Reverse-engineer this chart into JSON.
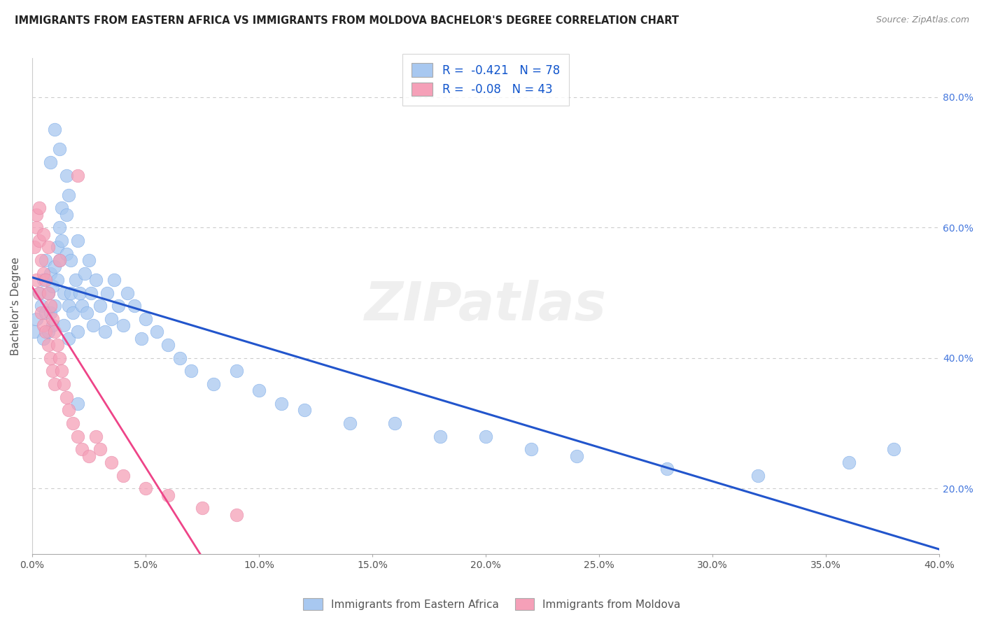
{
  "title": "IMMIGRANTS FROM EASTERN AFRICA VS IMMIGRANTS FROM MOLDOVA BACHELOR'S DEGREE CORRELATION CHART",
  "source": "Source: ZipAtlas.com",
  "ylabel": "Bachelor's Degree",
  "legend_label1": "Immigrants from Eastern Africa",
  "legend_label2": "Immigrants from Moldova",
  "R1": -0.421,
  "N1": 78,
  "R2": -0.08,
  "N2": 43,
  "xlim": [
    0.0,
    0.4
  ],
  "ylim": [
    0.1,
    0.86
  ],
  "color_blue": "#A8C8F0",
  "color_pink": "#F5A0B8",
  "line_color_blue": "#2255CC",
  "line_color_pink": "#EE4488",
  "background": "#FFFFFF",
  "blue_scatter_x": [
    0.001,
    0.002,
    0.003,
    0.004,
    0.005,
    0.005,
    0.006,
    0.006,
    0.007,
    0.007,
    0.008,
    0.008,
    0.009,
    0.009,
    0.01,
    0.01,
    0.011,
    0.011,
    0.012,
    0.012,
    0.013,
    0.013,
    0.014,
    0.014,
    0.015,
    0.015,
    0.016,
    0.016,
    0.017,
    0.017,
    0.018,
    0.019,
    0.02,
    0.02,
    0.021,
    0.022,
    0.023,
    0.024,
    0.025,
    0.026,
    0.027,
    0.028,
    0.03,
    0.032,
    0.033,
    0.035,
    0.036,
    0.038,
    0.04,
    0.042,
    0.045,
    0.048,
    0.05,
    0.055,
    0.06,
    0.065,
    0.07,
    0.08,
    0.09,
    0.1,
    0.11,
    0.12,
    0.14,
    0.16,
    0.18,
    0.2,
    0.22,
    0.24,
    0.28,
    0.32,
    0.36,
    0.38,
    0.008,
    0.01,
    0.015,
    0.02,
    0.012,
    0.016
  ],
  "blue_scatter_y": [
    0.44,
    0.46,
    0.5,
    0.48,
    0.52,
    0.43,
    0.55,
    0.47,
    0.5,
    0.44,
    0.53,
    0.47,
    0.51,
    0.45,
    0.54,
    0.48,
    0.57,
    0.52,
    0.6,
    0.55,
    0.63,
    0.58,
    0.5,
    0.45,
    0.62,
    0.56,
    0.48,
    0.43,
    0.55,
    0.5,
    0.47,
    0.52,
    0.58,
    0.44,
    0.5,
    0.48,
    0.53,
    0.47,
    0.55,
    0.5,
    0.45,
    0.52,
    0.48,
    0.44,
    0.5,
    0.46,
    0.52,
    0.48,
    0.45,
    0.5,
    0.48,
    0.43,
    0.46,
    0.44,
    0.42,
    0.4,
    0.38,
    0.36,
    0.38,
    0.35,
    0.33,
    0.32,
    0.3,
    0.3,
    0.28,
    0.28,
    0.26,
    0.25,
    0.23,
    0.22,
    0.24,
    0.26,
    0.7,
    0.75,
    0.68,
    0.33,
    0.72,
    0.65
  ],
  "pink_scatter_x": [
    0.001,
    0.002,
    0.002,
    0.003,
    0.003,
    0.004,
    0.004,
    0.005,
    0.005,
    0.006,
    0.006,
    0.007,
    0.007,
    0.008,
    0.008,
    0.009,
    0.009,
    0.01,
    0.01,
    0.011,
    0.012,
    0.013,
    0.014,
    0.015,
    0.016,
    0.018,
    0.02,
    0.022,
    0.025,
    0.028,
    0.03,
    0.035,
    0.04,
    0.05,
    0.06,
    0.075,
    0.09,
    0.002,
    0.003,
    0.005,
    0.007,
    0.012,
    0.02
  ],
  "pink_scatter_y": [
    0.57,
    0.6,
    0.52,
    0.58,
    0.5,
    0.55,
    0.47,
    0.53,
    0.45,
    0.52,
    0.44,
    0.5,
    0.42,
    0.48,
    0.4,
    0.46,
    0.38,
    0.44,
    0.36,
    0.42,
    0.4,
    0.38,
    0.36,
    0.34,
    0.32,
    0.3,
    0.28,
    0.26,
    0.25,
    0.28,
    0.26,
    0.24,
    0.22,
    0.2,
    0.19,
    0.17,
    0.16,
    0.62,
    0.63,
    0.59,
    0.57,
    0.55,
    0.68
  ],
  "y_ticks": [
    0.2,
    0.4,
    0.6,
    0.8
  ],
  "x_ticks": [
    0.0,
    0.05,
    0.1,
    0.15,
    0.2,
    0.25,
    0.3,
    0.35,
    0.4
  ]
}
